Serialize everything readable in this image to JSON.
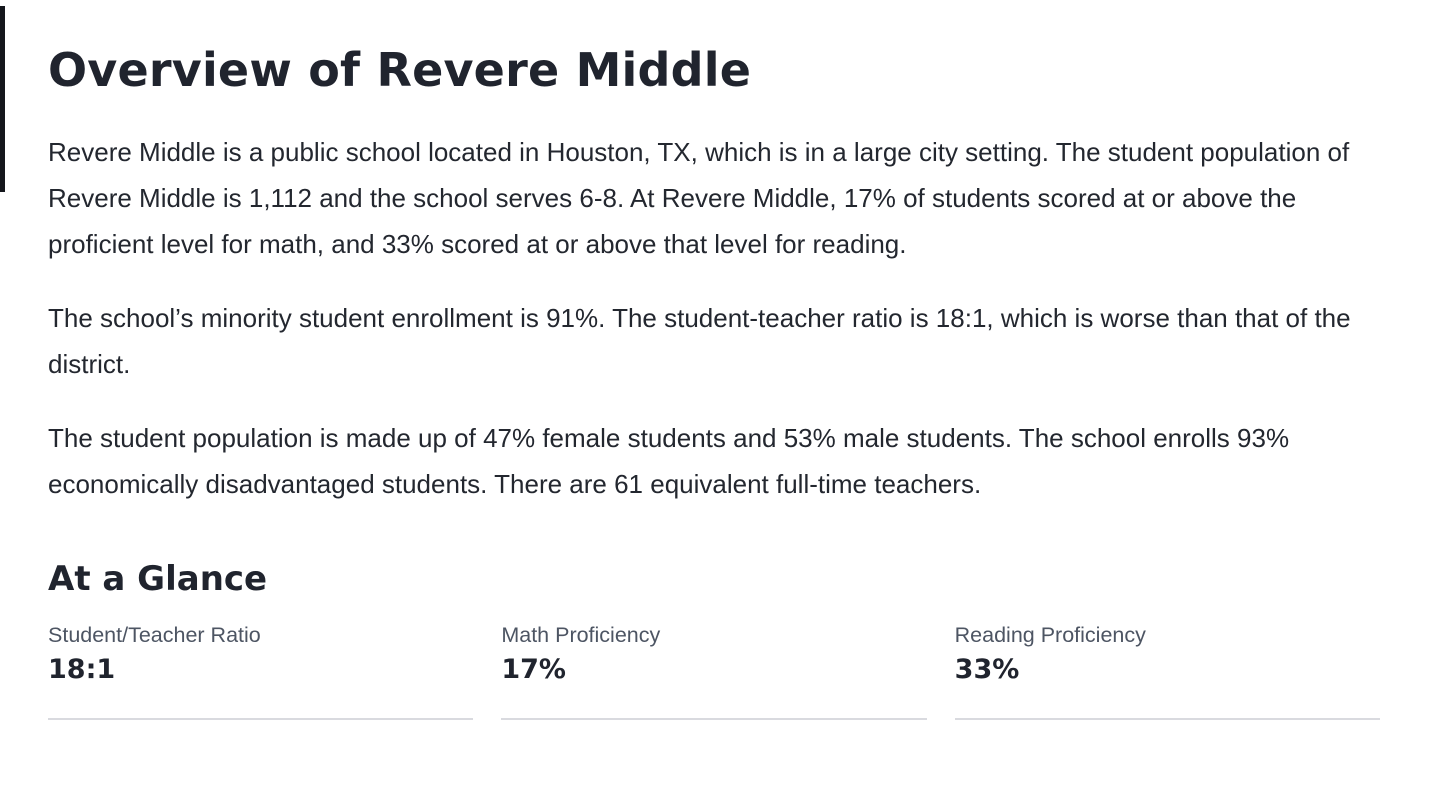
{
  "page": {
    "title": "Overview of Revere Middle",
    "paragraphs": {
      "p1": "Revere Middle is a public school located in Houston, TX, which is in a large city setting. The student population of Revere Middle is 1,112 and the school serves 6-8. At Revere Middle, 17% of students scored at or above the proficient level for math, and 33% scored at or above that level for reading.",
      "p2": "The school’s minority student enrollment is 91%. The student-teacher ratio is 18:1, which is worse than that of the district.",
      "p3": "The student population is made up of 47% female students and 53% male students. The school enrolls 93% economically disadvantaged students. There are 61 equivalent full-time teachers."
    },
    "at_a_glance": {
      "heading": "At a Glance",
      "stats": [
        {
          "label": "Student/Teacher Ratio",
          "value": "18:1"
        },
        {
          "label": "Math Proficiency",
          "value": "17%"
        },
        {
          "label": "Reading Proficiency",
          "value": "33%"
        }
      ]
    },
    "colors": {
      "heading_text": "#20242E",
      "body_text": "#23272F",
      "stat_label_text": "#4D5563",
      "divider": "#D9DADF",
      "left_edge_bar": "#14161C"
    }
  }
}
